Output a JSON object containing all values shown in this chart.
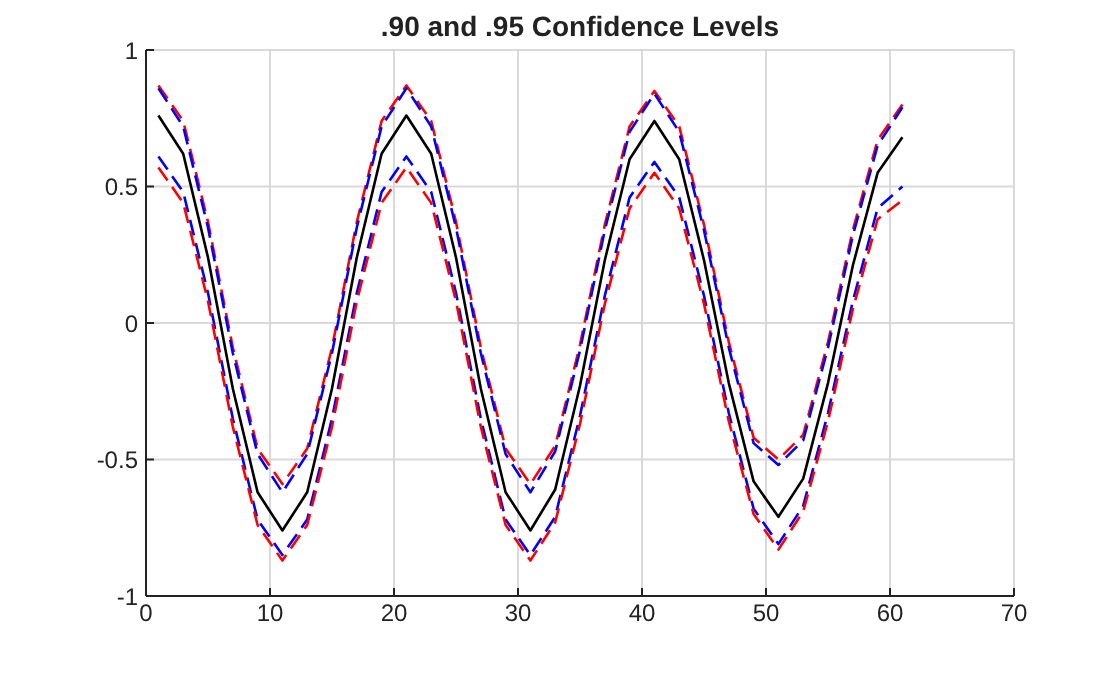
{
  "chart_data": {
    "type": "line",
    "title": ".90 and .95 Confidence Levels",
    "x": [
      1,
      3,
      5,
      7,
      9,
      11,
      13,
      15,
      17,
      19,
      21,
      23,
      25,
      27,
      29,
      31,
      33,
      35,
      37,
      39,
      41,
      43,
      45,
      47,
      49,
      51,
      53,
      55,
      57,
      59,
      61
    ],
    "series": [
      {
        "color": "#ff0000",
        "line_style": "dashed",
        "values": [
          0.87,
          0.74,
          0.37,
          -0.09,
          -0.46,
          -0.59,
          -0.46,
          -0.09,
          0.37,
          0.74,
          0.87,
          0.74,
          0.37,
          -0.09,
          -0.46,
          -0.59,
          -0.45,
          -0.08,
          0.36,
          0.72,
          0.85,
          0.72,
          0.36,
          -0.07,
          -0.42,
          -0.5,
          -0.41,
          -0.07,
          0.34,
          0.67,
          0.8
        ]
      },
      {
        "color": "#0000ff",
        "line_style": "dashed",
        "values": [
          0.86,
          0.72,
          0.35,
          -0.11,
          -0.48,
          -0.62,
          -0.48,
          -0.11,
          0.35,
          0.72,
          0.86,
          0.72,
          0.35,
          -0.11,
          -0.48,
          -0.62,
          -0.47,
          -0.1,
          0.34,
          0.7,
          0.84,
          0.7,
          0.34,
          -0.09,
          -0.44,
          -0.52,
          -0.43,
          -0.09,
          0.32,
          0.65,
          0.79
        ]
      },
      {
        "color": "#000000",
        "line_style": "solid",
        "values": [
          0.76,
          0.62,
          0.24,
          -0.24,
          -0.62,
          -0.76,
          -0.62,
          -0.24,
          0.24,
          0.62,
          0.76,
          0.62,
          0.24,
          -0.24,
          -0.62,
          -0.76,
          -0.61,
          -0.23,
          0.23,
          0.6,
          0.74,
          0.6,
          0.23,
          -0.22,
          -0.58,
          -0.71,
          -0.57,
          -0.22,
          0.21,
          0.55,
          0.68
        ]
      },
      {
        "color": "#0000ff",
        "line_style": "dashed",
        "values": [
          0.61,
          0.48,
          0.11,
          -0.35,
          -0.72,
          -0.85,
          -0.72,
          -0.35,
          0.11,
          0.48,
          0.61,
          0.48,
          0.11,
          -0.35,
          -0.72,
          -0.85,
          -0.71,
          -0.34,
          0.1,
          0.46,
          0.59,
          0.46,
          0.1,
          -0.33,
          -0.68,
          -0.81,
          -0.67,
          -0.33,
          0.08,
          0.42,
          0.5
        ]
      },
      {
        "color": "#ff0000",
        "line_style": "dashed",
        "values": [
          0.57,
          0.44,
          0.08,
          -0.38,
          -0.74,
          -0.87,
          -0.74,
          -0.38,
          0.08,
          0.44,
          0.57,
          0.44,
          0.08,
          -0.38,
          -0.74,
          -0.87,
          -0.73,
          -0.37,
          0.07,
          0.42,
          0.55,
          0.42,
          0.07,
          -0.36,
          -0.7,
          -0.83,
          -0.69,
          -0.36,
          0.05,
          0.38,
          0.45
        ]
      }
    ],
    "xlim": [
      0,
      70
    ],
    "xticks": [
      0,
      10,
      20,
      30,
      40,
      50,
      60,
      70
    ],
    "ylim": [
      -1,
      1
    ],
    "yticks": [
      -1,
      -0.5,
      0,
      0.5,
      1
    ],
    "grid": true,
    "marker": "none"
  }
}
